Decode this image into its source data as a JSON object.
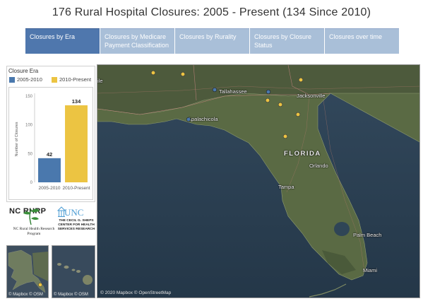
{
  "title": "176 Rural Hospital Closures: 2005 - Present (134 Since 2010)",
  "tabs": [
    {
      "label": "Closures by Era",
      "active": true
    },
    {
      "label": "Closures by Medicare Payment Classification",
      "active": false
    },
    {
      "label": "Closures by Rurality",
      "active": false
    },
    {
      "label": "Closures by Closure Status",
      "active": false
    },
    {
      "label": "Closures over time",
      "active": false
    }
  ],
  "legend": {
    "title": "Closure Era",
    "items": [
      {
        "label": "2005-2010",
        "color": "#4a78ad"
      },
      {
        "label": "2010-Present",
        "color": "#ecc442"
      }
    ]
  },
  "chart_data": {
    "type": "bar",
    "categories": [
      "2005-2010",
      "2010-Present"
    ],
    "values": [
      42,
      134
    ],
    "colors": [
      "#4a78ad",
      "#ecc442"
    ],
    "title": "",
    "xlabel": "",
    "ylabel": "Number of Closures",
    "ylim": [
      0,
      150
    ],
    "yticks": [
      0,
      50,
      100,
      150
    ],
    "data_labels": true,
    "grid": false
  },
  "logos": {
    "ncrhrp_name": "NC RHRP",
    "ncrhrp_subtitle": "NC Rural Health Research Program",
    "unc_name": "UNC",
    "unc_subtitle": "THE CECIL G. SHEPS CENTER FOR HEALTH SERVICES RESEARCH"
  },
  "insets": [
    {
      "name": "alaska",
      "credit": "© Mapbox © OSM"
    },
    {
      "name": "hawaii",
      "credit": "© Mapbox © OSM"
    }
  ],
  "map": {
    "state_label": "FLORIDA",
    "cities": [
      "Tallahassee",
      "Apalachicola",
      "Jacksonville",
      "Orlando",
      "Tampa",
      "Palm Beach",
      "Miami"
    ],
    "credit": "© 2020 Mapbox © OpenStreetMap",
    "marker_colors": {
      "2005-2010": "#4a78ad",
      "2010-Present": "#ecc442"
    }
  }
}
